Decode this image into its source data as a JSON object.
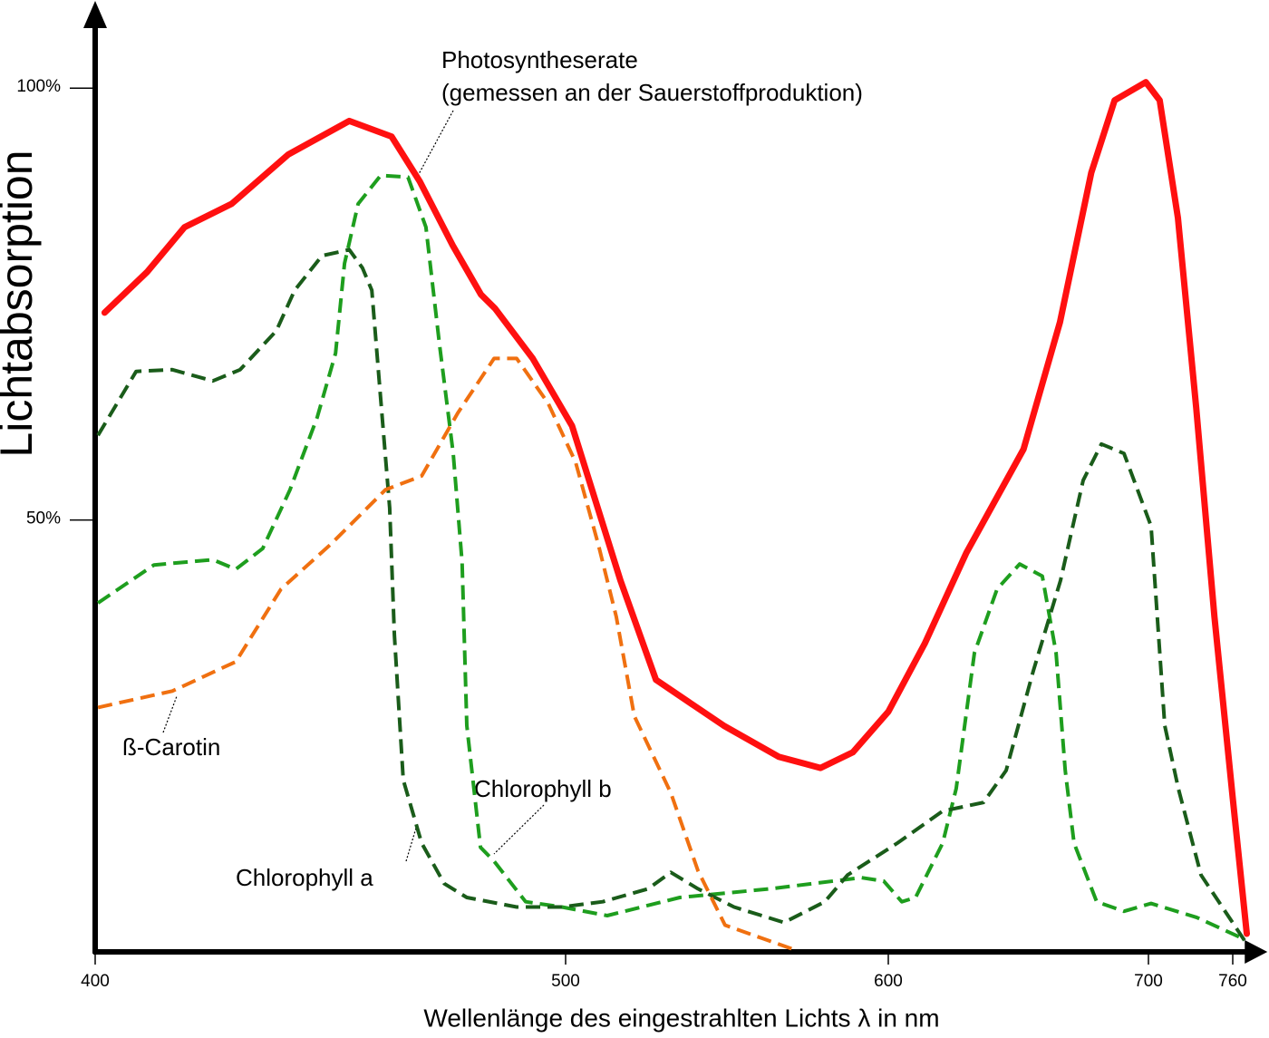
{
  "chart_data": {
    "type": "line",
    "x_label": "Wellenlänge des eingestrahlten Lichts λ in nm",
    "y_label": "Lichtabsorption",
    "annotation": "(gemessen an der Sauerstoffproduktion)",
    "xlim": [
      400,
      775
    ],
    "xticks": [
      400,
      500,
      600,
      700,
      760
    ],
    "ylim": [
      0,
      108
    ],
    "yticks": [
      {
        "value": 50,
        "label": "50%"
      },
      {
        "value": 100,
        "label": "100%"
      }
    ],
    "series": [
      {
        "name": "Photosyntheserate",
        "color": "#ff1010",
        "dashed": false,
        "x": [
          402,
          411,
          419,
          429,
          441,
          454,
          463,
          469,
          476,
          482,
          485,
          493,
          502,
          517,
          528,
          549,
          566,
          579,
          589,
          600,
          614,
          630,
          652,
          666,
          678,
          687,
          699,
          708,
          721,
          734,
          747,
          760,
          770
        ],
        "values": [
          74,
          78.7,
          83.9,
          86.6,
          92.3,
          96.2,
          94.4,
          89.2,
          81.8,
          76.1,
          74.5,
          68.7,
          60.9,
          43,
          31.5,
          26.2,
          22.6,
          21.3,
          23.1,
          27.8,
          35.7,
          46.2,
          58.2,
          72.9,
          90.2,
          98.6,
          100.7,
          98.6,
          85,
          63,
          38.8,
          17.8,
          2.1
        ]
      },
      {
        "name": "Chlorophyll b",
        "color": "#1e9e1e",
        "dashed": true,
        "x": [
          400.6,
          412.5,
          425,
          429.9,
          435.6,
          441.4,
          447.2,
          451.1,
          453,
          455.9,
          460.7,
          466.5,
          470.3,
          473.2,
          476.1,
          478,
          479,
          481.9,
          484.8,
          491.5,
          499.2,
          512.9,
          535.4,
          563.5,
          591.6,
          598.6,
          605.2,
          610.5,
          620.9,
          626.1,
          633.1,
          641.8,
          650.5,
          659.2,
          664.5,
          668,
          671.4,
          680.1,
          690.6,
          701.9,
          734.2,
          766.5
        ],
        "values": [
          40.4,
          44.8,
          45.4,
          44.3,
          46.7,
          53.5,
          61.9,
          69.3,
          79.7,
          86.6,
          89.9,
          89.7,
          83.9,
          70.3,
          57.7,
          45.1,
          26.2,
          12.1,
          10.5,
          5.8,
          5.2,
          4.2,
          6.3,
          7.3,
          8.6,
          8.2,
          5.8,
          6.3,
          12.6,
          18.9,
          34.6,
          42,
          44.9,
          43.5,
          34.6,
          21,
          12.6,
          5.8,
          4.7,
          5.6,
          4,
          1.6
        ]
      },
      {
        "name": "Chlorophyll a",
        "color": "#1a5c1a",
        "dashed": true,
        "x": [
          400.6,
          408.7,
          416.4,
          425,
          430.8,
          438.5,
          442.4,
          448.2,
          454,
          456.8,
          458.8,
          460.7,
          462.6,
          463.6,
          465.5,
          469.4,
          474.2,
          479,
          489.6,
          499.2,
          511.5,
          525.6,
          532.6,
          541,
          552.2,
          567.7,
          580.3,
          587.4,
          603.5,
          620.9,
          636.6,
          645.3,
          655.7,
          666.2,
          674.9,
          681.9,
          690.6,
          701.9,
          711.6,
          721.3,
          737.4,
          769.7
        ],
        "values": [
          59.8,
          67.2,
          67.4,
          66.1,
          67.4,
          71.9,
          76.6,
          80.6,
          81.3,
          79.2,
          76.6,
          64,
          51.4,
          36.7,
          19.9,
          12.6,
          7.9,
          6.3,
          5.2,
          5.2,
          5.8,
          7.3,
          9.2,
          7.3,
          5.2,
          3.4,
          5.8,
          8.9,
          12.6,
          16.3,
          17.3,
          21,
          32.5,
          43,
          54.6,
          58.8,
          57.7,
          49.3,
          26.2,
          18.9,
          8.9,
          1
        ]
      },
      {
        "name": "ß-Carotin",
        "color": "#f07010",
        "dashed": true,
        "x": [
          400.6,
          416.4,
          429.9,
          439.5,
          450.1,
          461.7,
          469.4,
          477.1,
          484.8,
          489.6,
          496.3,
          503.1,
          510.1,
          515.7,
          521.3,
          532.6,
          541,
          549.4,
          560.7,
          570.5
        ],
        "values": [
          28.3,
          30.2,
          33.6,
          42,
          47.2,
          53.5,
          55.1,
          62.4,
          68.7,
          68.7,
          63.5,
          56.7,
          47.2,
          38.8,
          27.3,
          18.4,
          9.4,
          3.1,
          1.6,
          0.3
        ]
      }
    ]
  }
}
